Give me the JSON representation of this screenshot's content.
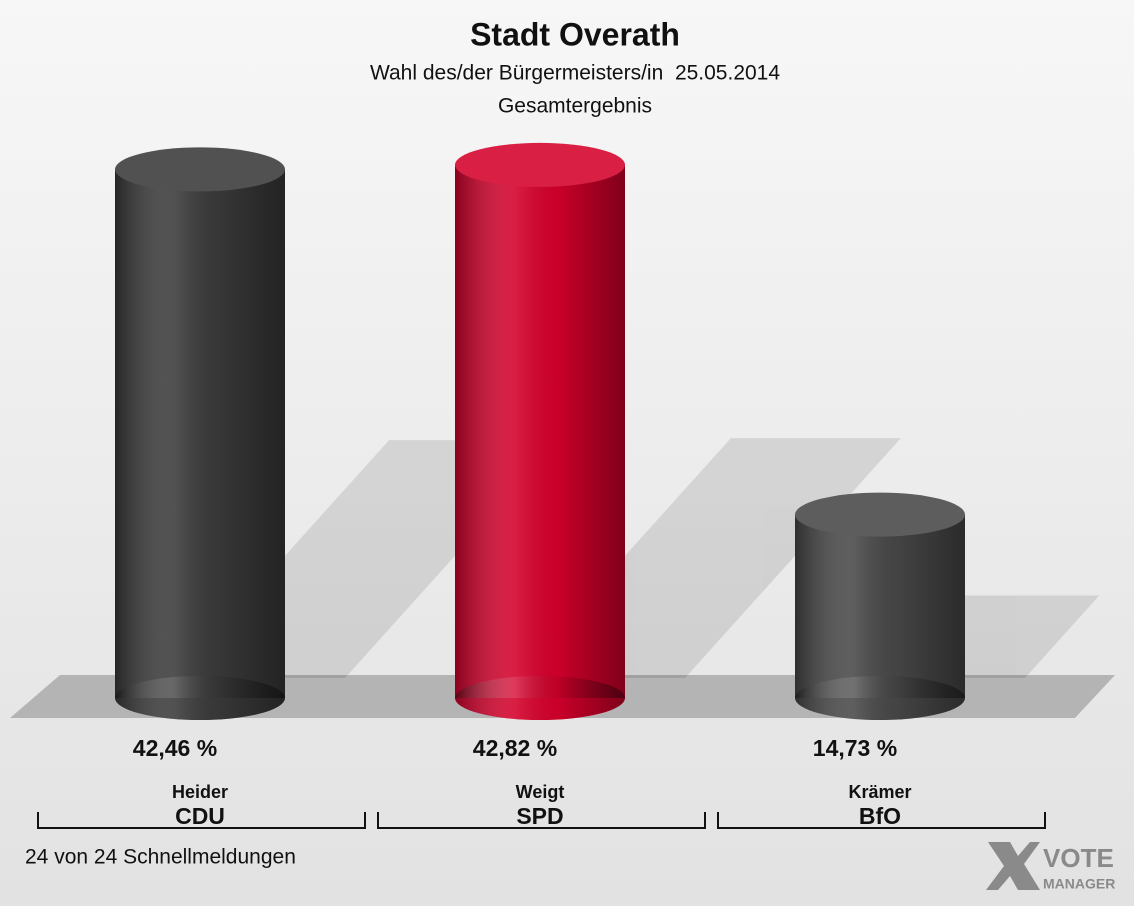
{
  "chart_data": {
    "type": "bar3d",
    "title": "Stadt Overath",
    "subtitle": "Wahl des/der Bürgermeisters/in  25.05.2014",
    "subtitle2": "Gesamtergebnis",
    "categories": [
      "Heider",
      "Weigt",
      "Krämer"
    ],
    "parties": [
      "CDU",
      "SPD",
      "BfO"
    ],
    "values": [
      42.46,
      42.82,
      14.73
    ],
    "value_labels": [
      "42,46 %",
      "42,82 %",
      "14,73 %"
    ],
    "colors": [
      "#3a3a3a",
      "#d4002b",
      "#474747"
    ],
    "footnote": "24 von 24 Schnellmeldungen",
    "logo": [
      "VOTE",
      "MANAGER"
    ]
  }
}
